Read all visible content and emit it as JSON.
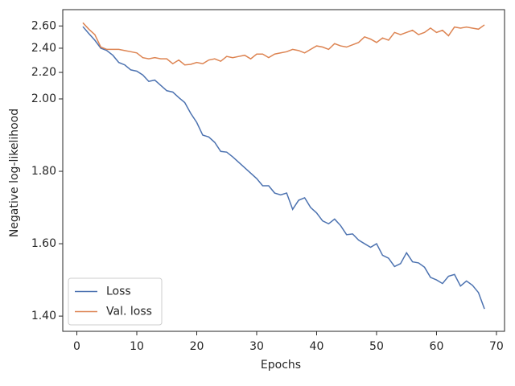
{
  "chart_data": {
    "type": "line",
    "xlabel": "Epochs",
    "ylabel": "Negative log-likelihood",
    "x": [
      1,
      2,
      3,
      4,
      5,
      6,
      7,
      8,
      9,
      10,
      11,
      12,
      13,
      14,
      15,
      16,
      17,
      18,
      19,
      20,
      21,
      22,
      23,
      24,
      25,
      26,
      27,
      28,
      29,
      30,
      31,
      32,
      33,
      34,
      35,
      36,
      37,
      38,
      39,
      40,
      41,
      42,
      43,
      44,
      45,
      46,
      47,
      48,
      49,
      50,
      51,
      52,
      53,
      54,
      55,
      56,
      57,
      58,
      59,
      60,
      61,
      62,
      63,
      64,
      65,
      66,
      67,
      68
    ],
    "series": [
      {
        "name": "Loss",
        "color": "#4c72b0",
        "values": [
          2.594,
          2.53,
          2.47,
          2.4,
          2.38,
          2.34,
          2.28,
          2.26,
          2.22,
          2.21,
          2.18,
          2.13,
          2.14,
          2.1,
          2.06,
          2.05,
          2.01,
          1.99,
          1.96,
          1.935,
          1.9,
          1.895,
          1.88,
          1.855,
          1.853,
          1.84,
          1.825,
          1.81,
          1.795,
          1.78,
          1.76,
          1.76,
          1.74,
          1.735,
          1.74,
          1.695,
          1.72,
          1.727,
          1.7,
          1.685,
          1.663,
          1.655,
          1.668,
          1.65,
          1.625,
          1.627,
          1.61,
          1.6,
          1.59,
          1.6,
          1.568,
          1.56,
          1.537,
          1.545,
          1.575,
          1.55,
          1.547,
          1.535,
          1.507,
          1.5,
          1.49,
          1.51,
          1.515,
          1.483,
          1.497,
          1.485,
          1.465,
          1.42
        ]
      },
      {
        "name": "Val. loss",
        "color": "#dd8452",
        "values": [
          2.63,
          2.57,
          2.52,
          2.41,
          2.39,
          2.39,
          2.39,
          2.38,
          2.37,
          2.36,
          2.32,
          2.31,
          2.32,
          2.31,
          2.31,
          2.27,
          2.3,
          2.26,
          2.265,
          2.28,
          2.27,
          2.3,
          2.31,
          2.29,
          2.33,
          2.32,
          2.33,
          2.34,
          2.31,
          2.35,
          2.35,
          2.32,
          2.35,
          2.36,
          2.37,
          2.39,
          2.38,
          2.36,
          2.39,
          2.42,
          2.41,
          2.39,
          2.44,
          2.42,
          2.41,
          2.43,
          2.45,
          2.5,
          2.48,
          2.45,
          2.49,
          2.47,
          2.54,
          2.52,
          2.54,
          2.56,
          2.52,
          2.54,
          2.58,
          2.54,
          2.56,
          2.51,
          2.59,
          2.58,
          2.59,
          2.58,
          2.57,
          2.61
        ]
      }
    ],
    "xlim": [
      -2.35,
      71.35
    ],
    "xticks": [
      0,
      10,
      20,
      30,
      40,
      50,
      60,
      70
    ],
    "ylim": [
      1.358,
      2.757
    ],
    "yscale": "linear-below-log-above",
    "ysplit": 2,
    "yticks": [
      {
        "value": 1.4,
        "label": "1.40"
      },
      {
        "value": 1.6,
        "label": "1.60"
      },
      {
        "value": 1.8,
        "label": "1.80"
      },
      {
        "value": 2.0,
        "label": "2.00"
      },
      {
        "value": 2.2,
        "label": "2.20"
      },
      {
        "value": 2.4,
        "label": "2.40"
      },
      {
        "value": 2.6,
        "label": "2.60"
      }
    ],
    "legend": "lower left"
  }
}
